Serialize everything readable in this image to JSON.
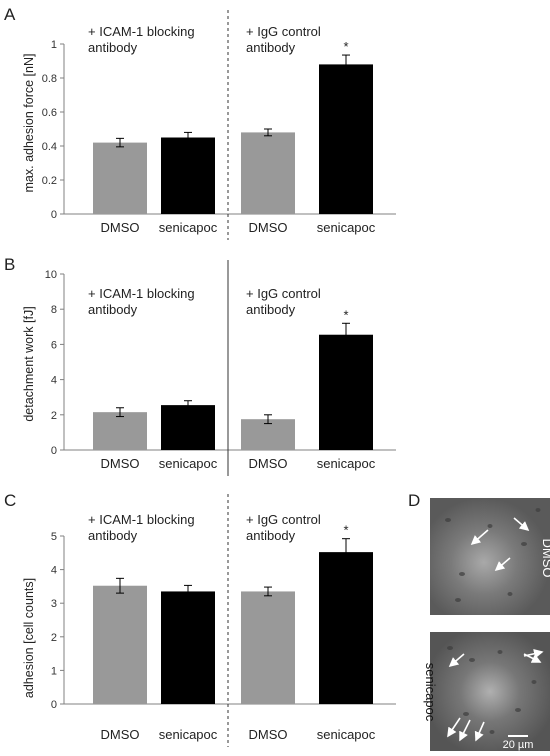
{
  "colors": {
    "dmso": "#999999",
    "senicapoc": "#000000",
    "axis": "#808080"
  },
  "panels": [
    {
      "letter": "A",
      "ylabel": "max. adhesion force [nN]",
      "group_left": [
        "+ ICAM-1 blocking",
        "antibody"
      ],
      "group_right": [
        "+ IgG control",
        "antibody"
      ],
      "star": "*",
      "divider": "dashed"
    },
    {
      "letter": "B",
      "ylabel": "detachment work [fJ]",
      "group_left": [
        "+ ICAM-1 blocking",
        "antibody"
      ],
      "group_right": [
        "+ IgG control",
        "antibody"
      ],
      "star": "*",
      "divider": "solid"
    },
    {
      "letter": "C",
      "ylabel": "adhesion [cell counts]",
      "group_left": [
        "+ ICAM-1 blocking",
        "antibody"
      ],
      "group_right": [
        "+ IgG control",
        "antibody"
      ],
      "star": "*",
      "divider": "dashed"
    }
  ],
  "chart_data": [
    {
      "type": "bar",
      "ylabel": "max. adhesion force [nN]",
      "categories": [
        "DMSO",
        "senicapoc",
        "DMSO",
        "senicapoc"
      ],
      "values": [
        0.42,
        0.45,
        0.48,
        0.88
      ],
      "errors": [
        0.025,
        0.03,
        0.02,
        0.055
      ],
      "ylim": [
        0,
        1
      ],
      "yticks": [
        "0",
        "0.2",
        "0.4",
        "0.6",
        "0.8",
        "1"
      ],
      "significant": [
        false,
        false,
        false,
        true
      ]
    },
    {
      "type": "bar",
      "ylabel": "detachment work [fJ]",
      "categories": [
        "DMSO",
        "senicapoc",
        "DMSO",
        "senicapoc"
      ],
      "values": [
        2.15,
        2.55,
        1.75,
        6.55
      ],
      "errors": [
        0.25,
        0.25,
        0.25,
        0.65
      ],
      "ylim": [
        0,
        10
      ],
      "yticks": [
        "0",
        "2",
        "4",
        "6",
        "8",
        "10"
      ],
      "significant": [
        false,
        false,
        false,
        true
      ]
    },
    {
      "type": "bar",
      "ylabel": "adhesion [cell counts]",
      "categories": [
        "DMSO",
        "senicapoc",
        "DMSO",
        "senicapoc"
      ],
      "values": [
        3.52,
        3.35,
        3.35,
        4.52
      ],
      "errors": [
        0.22,
        0.18,
        0.13,
        0.4
      ],
      "ylim": [
        0,
        5
      ],
      "yticks": [
        "0",
        "1",
        "2",
        "3",
        "4",
        "5"
      ],
      "significant": [
        false,
        false,
        false,
        true
      ]
    }
  ],
  "panelD": {
    "letter": "D",
    "top_label": "DMSO",
    "bottom_label": "senicapoc",
    "scale_bar": "20 µm"
  }
}
